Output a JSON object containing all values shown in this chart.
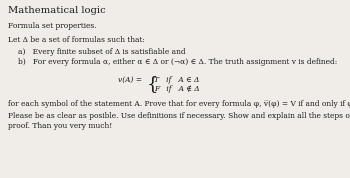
{
  "bg_color": "#f0ede8",
  "text_color": "#1a1a1a",
  "title": "Mathematical logic",
  "subtitle": "Formula set properties.",
  "line1": "Let Δ be a set of formulas such that:",
  "item_a": "a)   Every finite subset of Δ is satisfiable and",
  "item_b": "b)   For every formula α, either α ∈ Δ or (¬α) ∈ Δ. The truth assignment v is defined:",
  "formula_lhs": "v(A) =",
  "formula_brace": "{",
  "formula_case1": "T   if   A ∈ Δ",
  "formula_case2": "F   if   A ∉ Δ",
  "line_after": "for each symbol of the statement A. Prove that for every formula φ, v̅(φ) = V if and only if φ ∈ Δ.",
  "line_end1": "Please be as clear as posible. Use definitions if necessary. Show and explain all the steps of the",
  "line_end2": "proof. Than you very much!",
  "fs_title": 7.2,
  "fs_body": 5.4,
  "fs_brace": 13
}
